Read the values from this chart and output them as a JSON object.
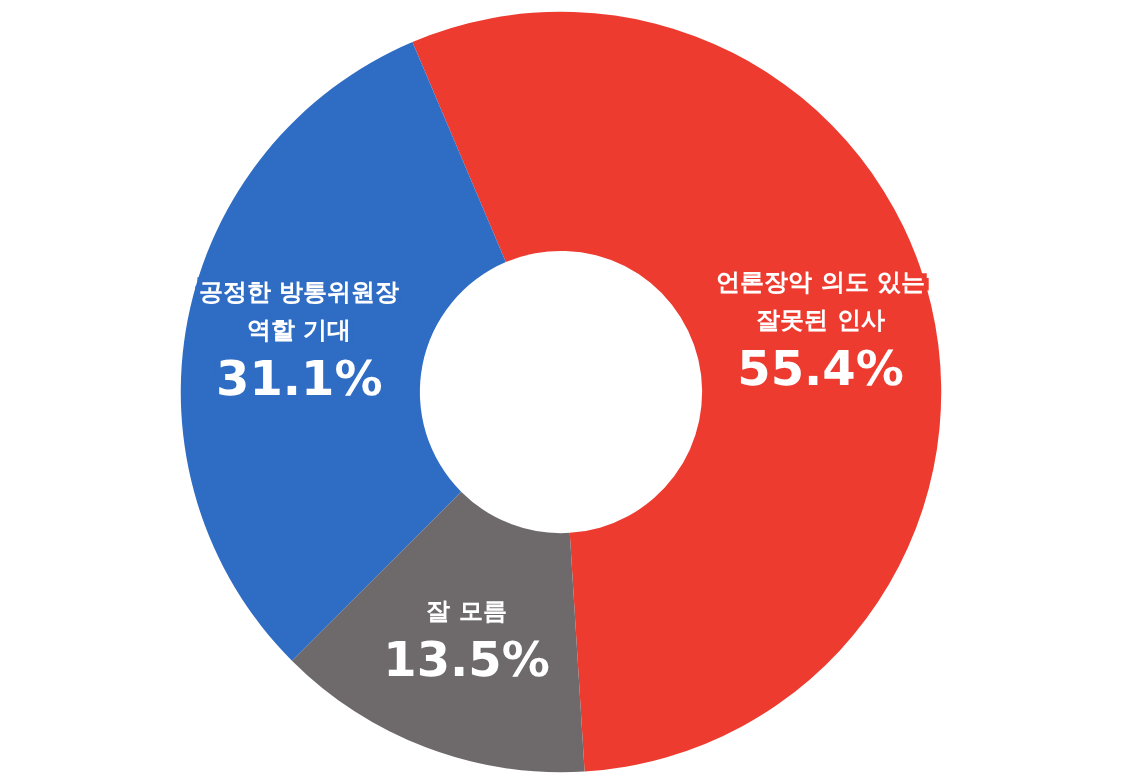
{
  "chart_data": {
    "type": "donut",
    "categories": [
      "언론장악 의도 있는\n잘못된 인사",
      "잘 모름",
      "공정한 방통위원장\n역할 기대"
    ],
    "values": [
      55.4,
      13.5,
      31.1
    ],
    "value_labels": [
      "55.4%",
      "13.5%",
      "31.1%"
    ],
    "colors": [
      "#ee3b30",
      "#6e6a6b",
      "#2f6cc4"
    ]
  }
}
